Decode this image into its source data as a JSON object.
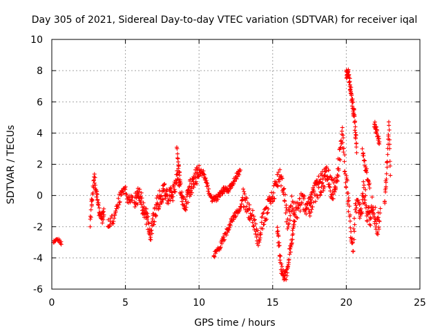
{
  "chart_data": {
    "type": "scatter",
    "title": "Day 305 of 2021, Sidereal Day-to-day VTEC variation (SDTVAR) for receiver iqal",
    "xlabel": "GPS time / hours",
    "ylabel": "SDTVAR / TECUs",
    "xlim": [
      0,
      25
    ],
    "ylim": [
      -6,
      10
    ],
    "x_ticks": [
      0,
      5,
      10,
      15,
      20,
      25
    ],
    "y_ticks": [
      -6,
      -4,
      -2,
      0,
      2,
      4,
      6,
      8,
      10
    ],
    "x_tick_labels": [
      "0",
      "5",
      "10",
      "15",
      "20",
      "25"
    ],
    "y_tick_labels": [
      "-6",
      "-4",
      "-2",
      "0",
      "2",
      "4",
      "6",
      "8",
      "10"
    ],
    "grid": true,
    "marker": "+",
    "series": [
      {
        "name": "SDTVAR",
        "color": "#ff0000",
        "segments": [
          {
            "points": [
              [
                0.1,
                -3.0
              ],
              [
                0.3,
                -2.9
              ],
              [
                0.5,
                -2.85
              ],
              [
                0.65,
                -3.1
              ]
            ],
            "spread": 0.1,
            "samples": 18
          },
          {
            "points": [
              [
                2.6,
                -2.0
              ],
              [
                2.7,
                -0.5
              ],
              [
                2.8,
                0.5
              ],
              [
                2.9,
                1.0
              ],
              [
                3.0,
                0.5
              ],
              [
                3.2,
                -1.0
              ],
              [
                3.4,
                -1.5
              ],
              [
                3.55,
                -1.2
              ]
            ],
            "spread": 0.4,
            "samples": 60
          },
          {
            "points": [
              [
                3.8,
                -1.8
              ],
              [
                4.2,
                -1.5
              ],
              [
                4.5,
                -0.5
              ],
              [
                4.8,
                0.4
              ],
              [
                5.0,
                0.3
              ],
              [
                5.2,
                -0.4
              ],
              [
                5.5,
                0.1
              ]
            ],
            "spread": 0.35,
            "samples": 60
          },
          {
            "points": [
              [
                5.6,
                -0.6
              ],
              [
                5.9,
                0.2
              ],
              [
                6.2,
                -0.8
              ],
              [
                6.5,
                -1.6
              ],
              [
                6.7,
                -2.7
              ],
              [
                6.9,
                -1.5
              ],
              [
                7.2,
                -0.5
              ],
              [
                7.6,
                0.4
              ],
              [
                8.0,
                -0.2
              ],
              [
                8.4,
                0.6
              ],
              [
                8.6,
                1.4
              ],
              [
                8.8,
                0.2
              ],
              [
                9.0,
                -1.0
              ],
              [
                9.3,
                0.3
              ],
              [
                9.6,
                0.9
              ],
              [
                10.0,
                1.5
              ]
            ],
            "spread": 0.6,
            "samples": 240
          },
          {
            "points": [
              [
                8.5,
                3.0
              ],
              [
                8.6,
                2.0
              ],
              [
                8.7,
                1.2
              ]
            ],
            "spread": 0.2,
            "samples": 14
          },
          {
            "points": [
              [
                10.0,
                1.5
              ],
              [
                10.3,
                1.4
              ],
              [
                10.6,
                0.5
              ],
              [
                10.9,
                -0.3
              ],
              [
                11.2,
                -0.2
              ],
              [
                11.6,
                0.3
              ],
              [
                12.0,
                0.4
              ],
              [
                12.4,
                1.0
              ],
              [
                12.8,
                1.6
              ]
            ],
            "spread": 0.2,
            "samples": 110
          },
          {
            "points": [
              [
                11.0,
                -3.9
              ],
              [
                11.4,
                -3.3
              ],
              [
                11.8,
                -2.5
              ],
              [
                12.2,
                -1.6
              ],
              [
                12.6,
                -1.0
              ],
              [
                12.9,
                -0.7
              ]
            ],
            "spread": 0.2,
            "samples": 70
          },
          {
            "points": [
              [
                12.9,
                0.1
              ],
              [
                13.2,
                -0.6
              ],
              [
                13.6,
                -1.2
              ],
              [
                14.0,
                -2.8
              ],
              [
                14.4,
                -1.5
              ],
              [
                14.8,
                -0.5
              ],
              [
                15.2,
                0.6
              ],
              [
                15.5,
                1.4
              ],
              [
                15.8,
                0.2
              ],
              [
                16.0,
                -1.8
              ],
              [
                16.3,
                -0.6
              ],
              [
                16.7,
                -1.0
              ],
              [
                17.0,
                -0.2
              ],
              [
                17.3,
                -0.9
              ],
              [
                17.6,
                -0.5
              ]
            ],
            "spread": 0.6,
            "samples": 200
          },
          {
            "points": [
              [
                15.3,
                -2.0
              ],
              [
                15.6,
                -4.8
              ],
              [
                15.9,
                -5.3
              ],
              [
                16.1,
                -4.0
              ],
              [
                16.3,
                -2.8
              ],
              [
                16.5,
                -1.5
              ]
            ],
            "spread": 0.35,
            "samples": 70
          },
          {
            "points": [
              [
                17.5,
                -0.7
              ],
              [
                17.9,
                0.2
              ],
              [
                18.3,
                0.8
              ],
              [
                18.7,
                1.2
              ],
              [
                19.1,
                0.2
              ],
              [
                19.5,
                2.0
              ],
              [
                19.7,
                4.0
              ],
              [
                19.85,
                2.5
              ],
              [
                20.0,
                1.0
              ],
              [
                20.15,
                -0.5
              ],
              [
                20.3,
                -2.5
              ],
              [
                20.45,
                -3.6
              ],
              [
                20.6,
                -1.0
              ],
              [
                20.8,
                -0.5
              ],
              [
                21.0,
                -1.2
              ],
              [
                21.2,
                0.5
              ],
              [
                21.4,
                -1.0
              ],
              [
                21.6,
                -1.5
              ],
              [
                21.8,
                -0.5
              ],
              [
                22.1,
                -2.0
              ],
              [
                22.3,
                -1.3
              ]
            ],
            "spread": 0.7,
            "samples": 260
          },
          {
            "points": [
              [
                20.0,
                7.8
              ],
              [
                20.1,
                8.0
              ],
              [
                20.25,
                7.2
              ],
              [
                20.4,
                6.0
              ],
              [
                20.55,
                5.0
              ],
              [
                20.7,
                3.0
              ]
            ],
            "spread": 0.4,
            "samples": 70
          },
          {
            "points": [
              [
                21.1,
                3.0
              ],
              [
                21.3,
                1.8
              ],
              [
                21.6,
                0.6
              ]
            ],
            "spread": 0.3,
            "samples": 25
          },
          {
            "points": [
              [
                21.9,
                4.6
              ],
              [
                22.1,
                4.0
              ],
              [
                22.25,
                3.4
              ]
            ],
            "spread": 0.25,
            "samples": 24
          },
          {
            "points": [
              [
                22.6,
                -0.6
              ],
              [
                22.8,
                2.5
              ],
              [
                22.9,
                4.8
              ],
              [
                23.0,
                1.2
              ]
            ],
            "spread": 0.35,
            "samples": 30
          }
        ]
      }
    ]
  }
}
